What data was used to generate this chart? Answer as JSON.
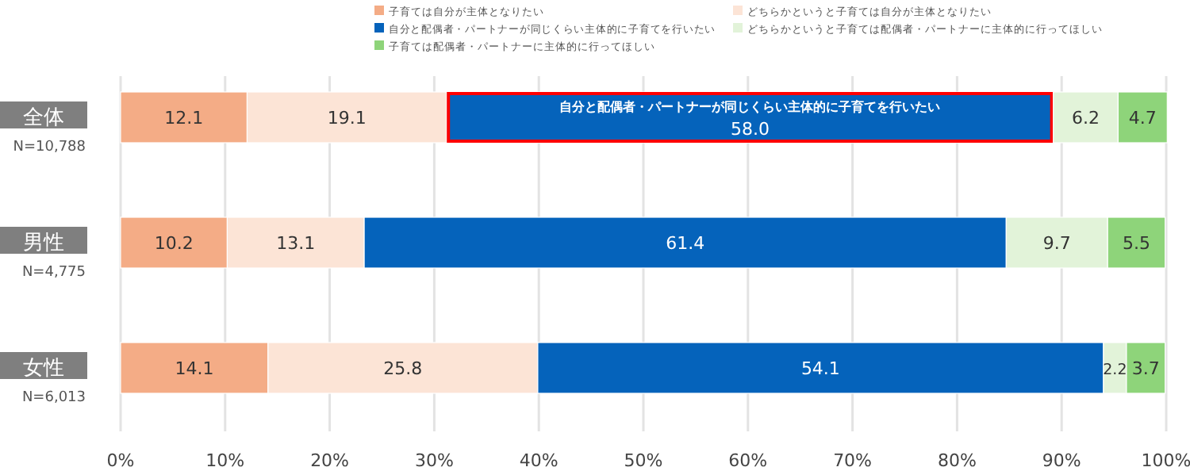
{
  "chart_data": {
    "type": "bar",
    "orientation": "horizontal",
    "stacked": true,
    "categories": [
      "全体",
      "男性",
      "女性"
    ],
    "series": [
      {
        "name": "子育ては自分が主体となりたい",
        "color": "#f4ac86",
        "values": [
          12.1,
          10.2,
          14.1
        ],
        "value_labels": [
          "12.1",
          "10.2",
          "14.1"
        ]
      },
      {
        "name": "どちらかというと子育ては自分が主体となりたい",
        "color": "#fce4d6",
        "values": [
          19.1,
          13.1,
          25.8
        ],
        "value_labels": [
          "19.1",
          "13.1",
          "25.8"
        ]
      },
      {
        "name": "自分と配偶者・パートナーが同じくらい主体的に子育てを行いたい",
        "color": "#0563bb",
        "values": [
          58.0,
          61.4,
          54.1
        ],
        "value_labels": [
          "58.0",
          "61.4",
          "54.1"
        ]
      },
      {
        "name": "どちらかというと子育ては配偶者・パートナーに主体的に行ってほしい",
        "color": "#e2f3d9",
        "values": [
          6.2,
          9.7,
          2.2
        ],
        "value_labels": [
          "6.2",
          "9.7",
          "2.2"
        ]
      },
      {
        "name": "子育ては配偶者・パートナーに主体的に行ってほしい",
        "color": "#8ed47a",
        "values": [
          4.7,
          5.5,
          3.7
        ],
        "value_labels": [
          "4.7",
          "5.5",
          "3.7"
        ]
      }
    ],
    "xlim": [
      0,
      100
    ],
    "xticks": [
      {
        "value": 0,
        "label": "0%"
      },
      {
        "value": 10,
        "label": "10%"
      },
      {
        "value": 20,
        "label": "20%"
      },
      {
        "value": 30,
        "label": "30%"
      },
      {
        "value": 40,
        "label": "40%"
      },
      {
        "value": 50,
        "label": "50%"
      },
      {
        "value": 60,
        "label": "60%"
      },
      {
        "value": 70,
        "label": "70%"
      },
      {
        "value": 80,
        "label": "80%"
      },
      {
        "value": 90,
        "label": "90%"
      },
      {
        "value": 100,
        "label": "100%"
      }
    ],
    "grid": "x",
    "legend": "top",
    "annotations": [
      "N=10,788",
      "N=4,775",
      "N=6,013",
      "自分と配偶者・パートナーが同じくらい主体的に子育てを行いたい"
    ]
  }
}
